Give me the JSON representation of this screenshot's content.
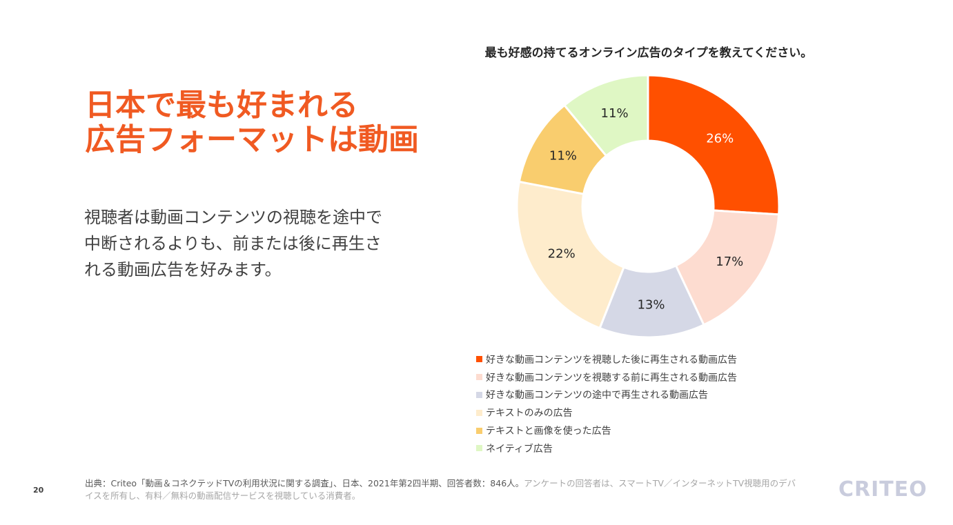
{
  "headline": {
    "line1": "日本で最も好まれる",
    "line2": "広告フォーマットは動画"
  },
  "body": {
    "line1": "視聴者は動画コンテンツの視聴を途中で",
    "line2": "中断されるよりも、前または後に再生さ",
    "line3": "れる動画広告を好みます。"
  },
  "chart_data": {
    "type": "pie",
    "title": "最も好感の持てるオンライン広告のタイプを教えてください。",
    "categories": [
      "好きな動画コンテンツを視聴した後に再生される動画広告",
      "好きな動画コンテンツを視聴する前に再生される動画広告",
      "好きな動画コンテンツの途中で再生される動画広告",
      "テキストのみの広告",
      "テキストと画像を使った広告",
      "ネイティブ広告"
    ],
    "values": [
      26,
      17,
      13,
      22,
      11,
      11
    ],
    "labels": [
      "26%",
      "17%",
      "13%",
      "22%",
      "11%",
      "11%"
    ],
    "colors": [
      "#FF5000",
      "#FDDCD0",
      "#D5D8E6",
      "#FEECCC",
      "#F9CD6E",
      "#DFF7C4"
    ],
    "label_colors": [
      "#ffffff",
      "#262626",
      "#262626",
      "#262626",
      "#262626",
      "#262626"
    ],
    "donut": true,
    "legend_position": "bottom"
  },
  "footer": {
    "page_number": "20",
    "source_main": "出典：Criteo「動画＆コネクテッドTVの利用状況に関する調査」、日本、2021年第2四半期、回答者数：846人。",
    "source_note": "アンケートの回答者は、スマートTV／インターネットTV視聴用のデバイスを所有し、有料／無料の動画配信サービスを視聴している消費者。",
    "logo": "CRITEO"
  }
}
